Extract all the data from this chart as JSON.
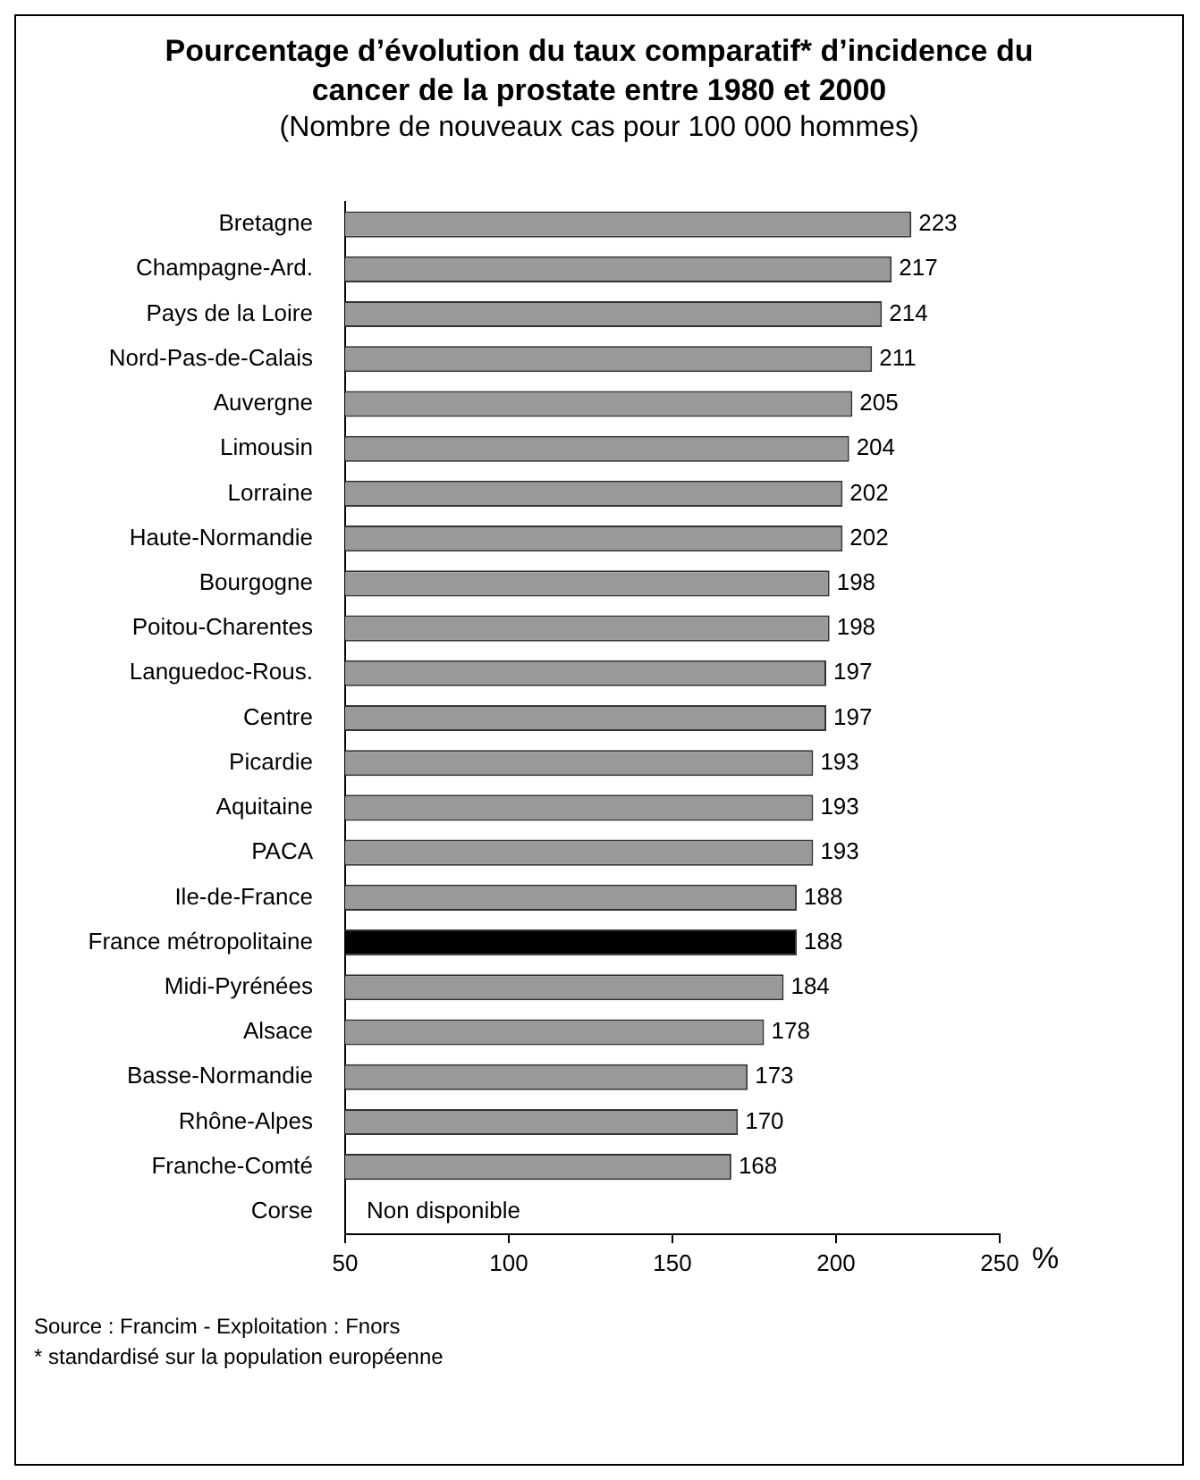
{
  "chart_data": {
    "type": "bar",
    "orientation": "horizontal",
    "title": "Pourcentage d’évolution du taux comparatif* d’incidence du cancer de la prostate entre 1980 et 2000",
    "subtitle": "(Nombre de nouveaux cas pour 100 000 hommes)",
    "xlabel": "%",
    "categories": [
      "Bretagne",
      "Champagne-Ard.",
      "Pays de la Loire",
      "Nord-Pas-de-Calais",
      "Auvergne",
      "Limousin",
      "Lorraine",
      "Haute-Normandie",
      "Bourgogne",
      "Poitou-Charentes",
      "Languedoc-Rous.",
      "Centre",
      "Picardie",
      "Aquitaine",
      "PACA",
      "Ile-de-France",
      "France métropolitaine",
      "Midi-Pyrénées",
      "Alsace",
      "Basse-Normandie",
      "Rhône-Alpes",
      "Franche-Comté",
      "Corse"
    ],
    "values": [
      223,
      217,
      214,
      211,
      205,
      204,
      202,
      202,
      198,
      198,
      197,
      197,
      193,
      193,
      193,
      188,
      188,
      184,
      178,
      173,
      170,
      168,
      null
    ],
    "colors": [
      "#999999",
      "#999999",
      "#999999",
      "#999999",
      "#999999",
      "#999999",
      "#999999",
      "#999999",
      "#999999",
      "#999999",
      "#999999",
      "#999999",
      "#999999",
      "#999999",
      "#999999",
      "#999999",
      "#000000",
      "#999999",
      "#999999",
      "#999999",
      "#999999",
      "#999999",
      "#999999"
    ],
    "xlim": [
      50,
      250
    ],
    "xticks": [
      50,
      100,
      150,
      200,
      250
    ],
    "grid": false,
    "legend": false,
    "data_labels": true,
    "annotations": [
      "Non disponible",
      "Source : Francim - Exploitation : Fnors",
      "* standardisé sur la population européenne"
    ]
  }
}
